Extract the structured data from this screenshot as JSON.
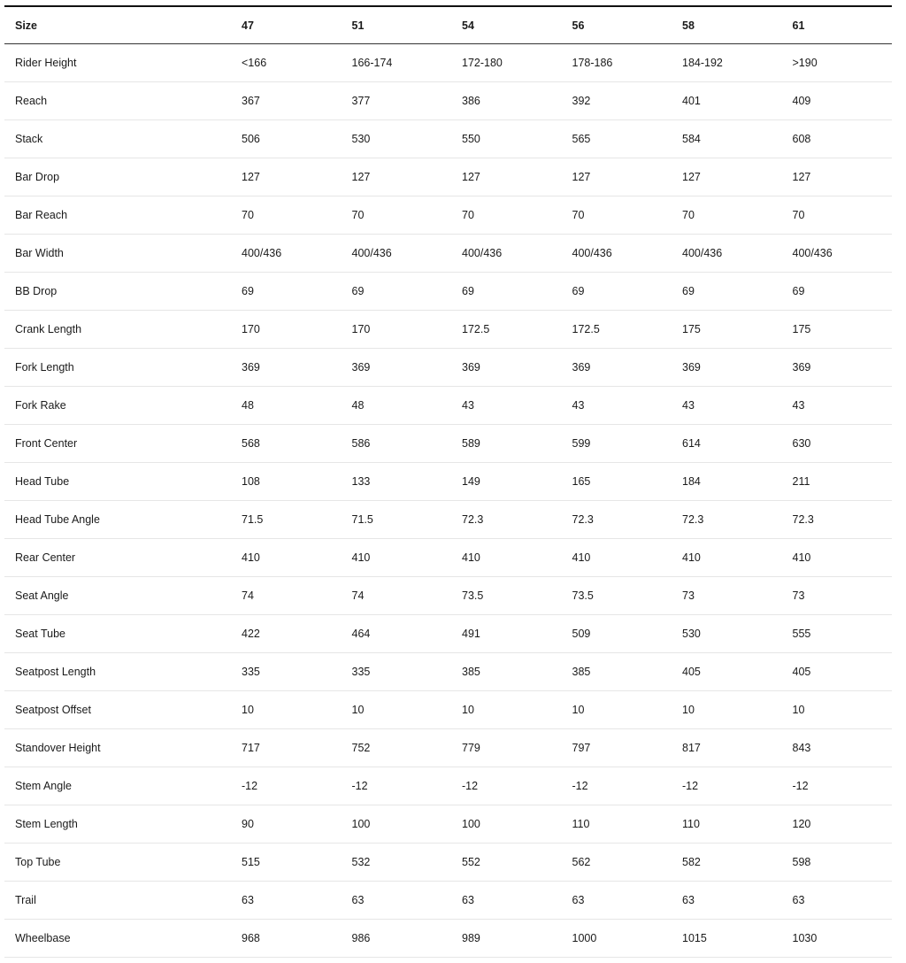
{
  "table": {
    "headers": [
      "Size",
      "47",
      "51",
      "54",
      "56",
      "58",
      "61"
    ],
    "rows": [
      [
        "Rider Height",
        "<166",
        "166-174",
        "172-180",
        "178-186",
        "184-192",
        ">190"
      ],
      [
        "Reach",
        "367",
        "377",
        "386",
        "392",
        "401",
        "409"
      ],
      [
        "Stack",
        "506",
        "530",
        "550",
        "565",
        "584",
        "608"
      ],
      [
        "Bar Drop",
        "127",
        "127",
        "127",
        "127",
        "127",
        "127"
      ],
      [
        "Bar Reach",
        "70",
        "70",
        "70",
        "70",
        "70",
        "70"
      ],
      [
        "Bar Width",
        "400/436",
        "400/436",
        "400/436",
        "400/436",
        "400/436",
        "400/436"
      ],
      [
        "BB Drop",
        "69",
        "69",
        "69",
        "69",
        "69",
        "69"
      ],
      [
        "Crank Length",
        "170",
        "170",
        "172.5",
        "172.5",
        "175",
        "175"
      ],
      [
        "Fork Length",
        "369",
        "369",
        "369",
        "369",
        "369",
        "369"
      ],
      [
        "Fork Rake",
        "48",
        "48",
        "43",
        "43",
        "43",
        "43"
      ],
      [
        "Front Center",
        "568",
        "586",
        "589",
        "599",
        "614",
        "630"
      ],
      [
        "Head Tube",
        "108",
        "133",
        "149",
        "165",
        "184",
        "211"
      ],
      [
        "Head Tube Angle",
        "71.5",
        "71.5",
        "72.3",
        "72.3",
        "72.3",
        "72.3"
      ],
      [
        "Rear Center",
        "410",
        "410",
        "410",
        "410",
        "410",
        "410"
      ],
      [
        "Seat Angle",
        "74",
        "74",
        "73.5",
        "73.5",
        "73",
        "73"
      ],
      [
        "Seat Tube",
        "422",
        "464",
        "491",
        "509",
        "530",
        "555"
      ],
      [
        "Seatpost Length",
        "335",
        "335",
        "385",
        "385",
        "405",
        "405"
      ],
      [
        "Seatpost Offset",
        "10",
        "10",
        "10",
        "10",
        "10",
        "10"
      ],
      [
        "Standover Height",
        "717",
        "752",
        "779",
        "797",
        "817",
        "843"
      ],
      [
        "Stem Angle",
        "-12",
        "-12",
        "-12",
        "-12",
        "-12",
        "-12"
      ],
      [
        "Stem Length",
        "90",
        "100",
        "100",
        "110",
        "110",
        "120"
      ],
      [
        "Top Tube",
        "515",
        "532",
        "552",
        "562",
        "582",
        "598"
      ],
      [
        "Trail",
        "63",
        "63",
        "63",
        "63",
        "63",
        "63"
      ],
      [
        "Wheelbase",
        "968",
        "986",
        "989",
        "1000",
        "1015",
        "1030"
      ]
    ]
  }
}
